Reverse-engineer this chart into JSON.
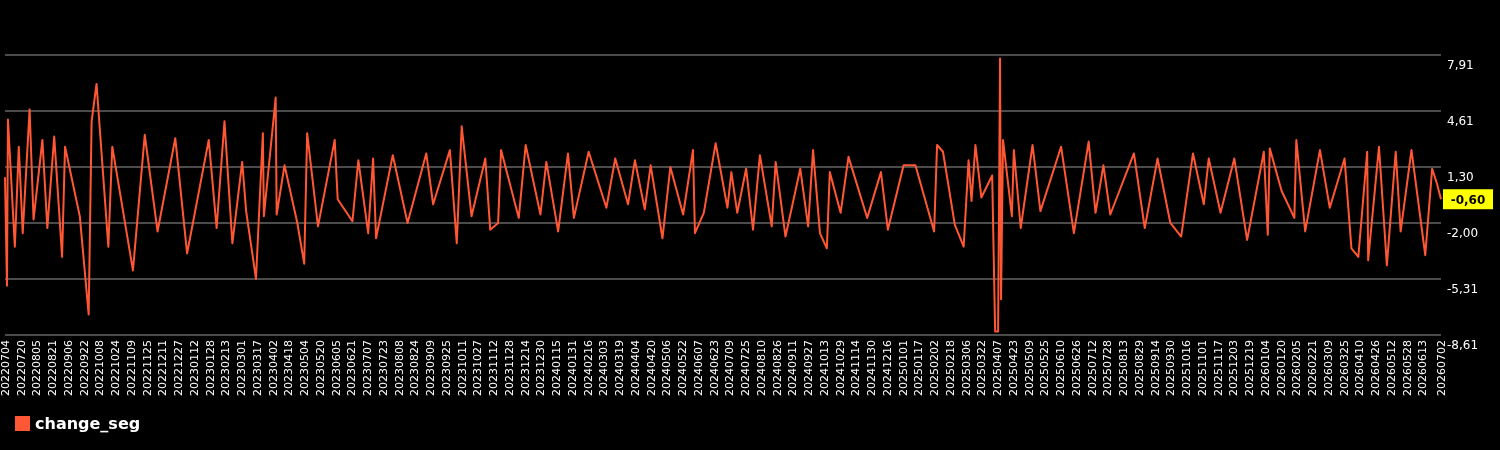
{
  "chart_data": {
    "type": "line",
    "ylim": [
      -8.61,
      7.91
    ],
    "yticks": [
      {
        "value": 7.91,
        "label": "7,91"
      },
      {
        "value": 4.61,
        "label": "4,61"
      },
      {
        "value": 1.3,
        "label": "1,30"
      },
      {
        "value": -2.0,
        "label": "-2,00"
      },
      {
        "value": -5.31,
        "label": "-5,31"
      },
      {
        "value": -8.61,
        "label": "-8,61"
      }
    ],
    "xlim": [
      "2022-07-04",
      "2026-07-02"
    ],
    "xticks": [
      {
        "value": "2022-07-04",
        "label": "20220704"
      },
      {
        "value": "2022-07-20",
        "label": "20220720"
      },
      {
        "value": "2022-08-05",
        "label": "20220805"
      },
      {
        "value": "2022-08-21",
        "label": "20220821"
      },
      {
        "value": "2022-09-06",
        "label": "20220906"
      },
      {
        "value": "2022-09-22",
        "label": "20220922"
      },
      {
        "value": "2022-10-08",
        "label": "20221008"
      },
      {
        "value": "2022-10-24",
        "label": "20221024"
      },
      {
        "value": "2022-11-09",
        "label": "20221109"
      },
      {
        "value": "2022-11-25",
        "label": "20221125"
      },
      {
        "value": "2022-12-11",
        "label": "20221211"
      },
      {
        "value": "2022-12-27",
        "label": "20221227"
      },
      {
        "value": "2023-01-12",
        "label": "20230112"
      },
      {
        "value": "2023-01-28",
        "label": "20230128"
      },
      {
        "value": "2023-02-13",
        "label": "20230213"
      },
      {
        "value": "2023-03-01",
        "label": "20230301"
      },
      {
        "value": "2023-03-17",
        "label": "20230317"
      },
      {
        "value": "2023-04-02",
        "label": "20230402"
      },
      {
        "value": "2023-04-18",
        "label": "20230418"
      },
      {
        "value": "2023-05-04",
        "label": "20230504"
      },
      {
        "value": "2023-05-20",
        "label": "20230520"
      },
      {
        "value": "2023-06-05",
        "label": "20230605"
      },
      {
        "value": "2023-06-21",
        "label": "20230621"
      },
      {
        "value": "2023-07-07",
        "label": "20230707"
      },
      {
        "value": "2023-07-23",
        "label": "20230723"
      },
      {
        "value": "2023-08-08",
        "label": "20230808"
      },
      {
        "value": "2023-08-24",
        "label": "20230824"
      },
      {
        "value": "2023-09-09",
        "label": "20230909"
      },
      {
        "value": "2023-09-25",
        "label": "20230925"
      },
      {
        "value": "2023-10-11",
        "label": "20231011"
      },
      {
        "value": "2023-10-27",
        "label": "20231027"
      },
      {
        "value": "2023-11-12",
        "label": "20231112"
      },
      {
        "value": "2023-11-28",
        "label": "20231128"
      },
      {
        "value": "2023-12-14",
        "label": "20231214"
      },
      {
        "value": "2023-12-30",
        "label": "20231230"
      },
      {
        "value": "2024-01-15",
        "label": "20240115"
      },
      {
        "value": "2024-01-31",
        "label": "20240131"
      },
      {
        "value": "2024-02-16",
        "label": "20240216"
      },
      {
        "value": "2024-03-03",
        "label": "20240303"
      },
      {
        "value": "2024-03-19",
        "label": "20240319"
      },
      {
        "value": "2024-04-04",
        "label": "20240404"
      },
      {
        "value": "2024-04-20",
        "label": "20240420"
      },
      {
        "value": "2024-05-06",
        "label": "20240506"
      },
      {
        "value": "2024-05-22",
        "label": "20240522"
      },
      {
        "value": "2024-06-07",
        "label": "20240607"
      },
      {
        "value": "2024-06-23",
        "label": "20240623"
      },
      {
        "value": "2024-07-09",
        "label": "20240709"
      },
      {
        "value": "2024-07-25",
        "label": "20240725"
      },
      {
        "value": "2024-08-10",
        "label": "20240810"
      },
      {
        "value": "2024-08-26",
        "label": "20240826"
      },
      {
        "value": "2024-09-11",
        "label": "20240911"
      },
      {
        "value": "2024-09-27",
        "label": "20240927"
      },
      {
        "value": "2024-10-13",
        "label": "20241013"
      },
      {
        "value": "2024-10-29",
        "label": "20241029"
      },
      {
        "value": "2024-11-14",
        "label": "20241114"
      },
      {
        "value": "2024-11-30",
        "label": "20241130"
      },
      {
        "value": "2024-12-16",
        "label": "20241216"
      },
      {
        "value": "2025-01-01",
        "label": "20250101"
      },
      {
        "value": "2025-01-17",
        "label": "20250117"
      },
      {
        "value": "2025-02-02",
        "label": "20250202"
      },
      {
        "value": "2025-02-18",
        "label": "20250218"
      },
      {
        "value": "2025-03-06",
        "label": "20250306"
      },
      {
        "value": "2025-03-22",
        "label": "20250322"
      },
      {
        "value": "2025-04-07",
        "label": "20250407"
      },
      {
        "value": "2025-04-23",
        "label": "20250423"
      },
      {
        "value": "2025-05-09",
        "label": "20250509"
      },
      {
        "value": "2025-05-25",
        "label": "20250525"
      },
      {
        "value": "2025-06-10",
        "label": "20250610"
      },
      {
        "value": "2025-06-26",
        "label": "20250626"
      },
      {
        "value": "2025-07-12",
        "label": "20250712"
      },
      {
        "value": "2025-07-28",
        "label": "20250728"
      },
      {
        "value": "2025-08-13",
        "label": "20250813"
      },
      {
        "value": "2025-08-29",
        "label": "20250829"
      },
      {
        "value": "2025-09-14",
        "label": "20250914"
      },
      {
        "value": "2025-09-30",
        "label": "20250930"
      },
      {
        "value": "2025-10-16",
        "label": "20251016"
      },
      {
        "value": "2025-11-01",
        "label": "20251101"
      },
      {
        "value": "2025-11-17",
        "label": "20251117"
      },
      {
        "value": "2025-12-03",
        "label": "20251203"
      },
      {
        "value": "2025-12-19",
        "label": "20251219"
      },
      {
        "value": "2026-01-04",
        "label": "20260104"
      },
      {
        "value": "2026-01-20",
        "label": "20260120"
      },
      {
        "value": "2026-02-05",
        "label": "20260205"
      },
      {
        "value": "2026-02-21",
        "label": "20260221"
      },
      {
        "value": "2026-03-09",
        "label": "20260309"
      },
      {
        "value": "2026-03-25",
        "label": "20260325"
      },
      {
        "value": "2026-04-10",
        "label": "20260410"
      },
      {
        "value": "2026-04-26",
        "label": "20260426"
      },
      {
        "value": "2026-05-12",
        "label": "20260512"
      },
      {
        "value": "2026-05-28",
        "label": "20260528"
      },
      {
        "value": "2026-06-13",
        "label": "20260613"
      },
      {
        "value": "2026-07-02",
        "label": "20260702"
      }
    ],
    "grid": "y",
    "legend": "bottom",
    "line_style": "solid",
    "annotations": [
      {
        "text": "-0,60",
        "x": "2026-07-02",
        "y": -0.6
      }
    ],
    "series": [
      {
        "name": "change_seg",
        "color": "#ff5733",
        "x": [
          "2022-07-04",
          "2022-07-06",
          "2022-07-07",
          "2022-07-14",
          "2022-07-18",
          "2022-07-22",
          "2022-07-29",
          "2022-08-02",
          "2022-08-11",
          "2022-08-16",
          "2022-08-23",
          "2022-08-31",
          "2022-09-03",
          "2022-09-18",
          "2022-09-27",
          "2022-09-30",
          "2022-10-05",
          "2022-10-17",
          "2022-10-21",
          "2022-11-11",
          "2022-11-23",
          "2022-12-06",
          "2022-12-24",
          "2023-01-05",
          "2023-01-27",
          "2023-02-04",
          "2023-02-12",
          "2023-02-20",
          "2023-03-02",
          "2023-03-06",
          "2023-03-16",
          "2023-03-23",
          "2023-03-24",
          "2023-04-05",
          "2023-04-06",
          "2023-04-14",
          "2023-04-27",
          "2023-05-04",
          "2023-05-07",
          "2023-05-18",
          "2023-06-04",
          "2023-06-07",
          "2023-06-22",
          "2023-06-28",
          "2023-07-08",
          "2023-07-13",
          "2023-07-16",
          "2023-08-02",
          "2023-08-17",
          "2023-09-05",
          "2023-09-12",
          "2023-09-29",
          "2023-10-06",
          "2023-10-11",
          "2023-10-21",
          "2023-11-04",
          "2023-11-09",
          "2023-11-17",
          "2023-11-20",
          "2023-12-08",
          "2023-12-15",
          "2023-12-30",
          "2024-01-05",
          "2024-01-17",
          "2024-01-27",
          "2024-02-02",
          "2024-02-17",
          "2024-03-06",
          "2024-03-15",
          "2024-03-28",
          "2024-04-04",
          "2024-04-14",
          "2024-04-20",
          "2024-05-02",
          "2024-05-10",
          "2024-05-23",
          "2024-06-02",
          "2024-06-04",
          "2024-06-13",
          "2024-06-25",
          "2024-07-07",
          "2024-07-11",
          "2024-07-17",
          "2024-07-26",
          "2024-08-02",
          "2024-08-09",
          "2024-08-21",
          "2024-08-25",
          "2024-09-04",
          "2024-09-19",
          "2024-09-27",
          "2024-10-02",
          "2024-10-09",
          "2024-10-16",
          "2024-10-19",
          "2024-10-30",
          "2024-11-07",
          "2024-11-26",
          "2024-12-10",
          "2024-12-17",
          "2025-01-02",
          "2025-01-14",
          "2025-02-02",
          "2025-02-05",
          "2025-02-11",
          "2025-02-23",
          "2025-03-04",
          "2025-03-09",
          "2025-03-12",
          "2025-03-16",
          "2025-03-22",
          "2025-04-02",
          "2025-04-05",
          "2025-04-08",
          "2025-04-10",
          "2025-04-11",
          "2025-04-13",
          "2025-04-22",
          "2025-04-24",
          "2025-05-01",
          "2025-05-13",
          "2025-05-21",
          "2025-06-11",
          "2025-06-24",
          "2025-07-09",
          "2025-07-16",
          "2025-07-24",
          "2025-07-31",
          "2025-08-24",
          "2025-09-04",
          "2025-09-17",
          "2025-09-30",
          "2025-10-11",
          "2025-10-23",
          "2025-11-03",
          "2025-11-08",
          "2025-11-20",
          "2025-12-04",
          "2025-12-17",
          "2026-01-03",
          "2026-01-07",
          "2026-01-09",
          "2026-01-21",
          "2026-02-03",
          "2026-02-05",
          "2026-02-14",
          "2026-03-01",
          "2026-03-11",
          "2026-03-26",
          "2026-04-02",
          "2026-04-09",
          "2026-04-18",
          "2026-04-19",
          "2026-04-30",
          "2026-05-08",
          "2026-05-17",
          "2026-05-22",
          "2026-06-02",
          "2026-06-16",
          "2026-06-23",
          "2026-06-28",
          "2026-07-02"
        ],
        "values": [
          0.7,
          -5.7,
          4.1,
          -3.4,
          2.5,
          -2.6,
          4.7,
          -1.8,
          2.9,
          -2.3,
          3.1,
          -4.0,
          2.5,
          -1.6,
          -7.4,
          4.0,
          6.2,
          -3.4,
          2.5,
          -4.8,
          3.2,
          -2.5,
          3.0,
          -3.8,
          2.9,
          -2.3,
          4.0,
          -3.2,
          1.6,
          -1.3,
          -5.3,
          3.3,
          -1.6,
          5.4,
          -1.5,
          1.4,
          -2.0,
          -4.4,
          3.3,
          -2.2,
          2.9,
          -0.6,
          -1.9,
          1.7,
          -2.6,
          1.8,
          -2.9,
          2.0,
          -2.0,
          2.1,
          -0.9,
          2.3,
          -3.2,
          3.7,
          -1.6,
          1.8,
          -2.4,
          -2.0,
          2.3,
          -1.7,
          2.6,
          -1.5,
          1.6,
          -2.5,
          2.1,
          -1.7,
          2.2,
          -1.1,
          1.8,
          -0.9,
          1.7,
          -1.2,
          1.4,
          -2.9,
          1.3,
          -1.5,
          2.3,
          -2.6,
          -1.4,
          2.7,
          -1.1,
          1.0,
          -1.4,
          1.2,
          -2.4,
          2.0,
          -2.2,
          1.6,
          -2.8,
          1.2,
          -2.2,
          2.3,
          -2.6,
          -3.5,
          1.0,
          -1.4,
          1.9,
          -1.7,
          1.0,
          -2.4,
          1.4,
          1.4,
          -2.5,
          2.6,
          2.2,
          -2.1,
          -3.4,
          1.7,
          -0.7,
          2.6,
          -0.5,
          0.8,
          -8.4,
          -8.4,
          7.7,
          -6.5,
          2.9,
          -1.6,
          2.3,
          -2.3,
          2.6,
          -1.3,
          2.5,
          -2.6,
          2.8,
          -1.4,
          1.4,
          -1.5,
          2.1,
          -2.3,
          1.8,
          -2.0,
          -2.8,
          2.1,
          -0.9,
          1.8,
          -1.4,
          1.8,
          -3.0,
          2.2,
          -2.7,
          2.4,
          -0.1,
          -1.7,
          2.9,
          -2.5,
          2.3,
          -1.1,
          1.8,
          -3.5,
          -4.0,
          2.2,
          -4.2,
          2.5,
          -4.5,
          2.2,
          -2.5,
          2.3,
          -3.9,
          1.2,
          0.3,
          -0.6
        ]
      }
    ]
  }
}
